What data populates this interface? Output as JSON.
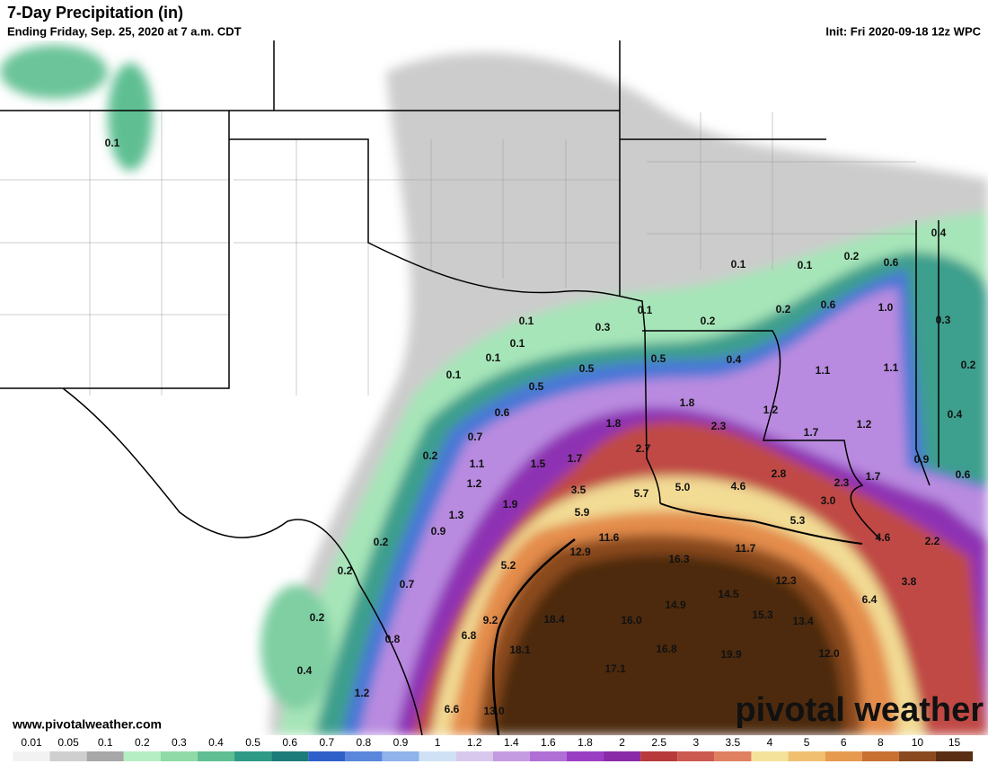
{
  "header": {
    "title": "7-Day Precipitation (in)",
    "subtitle": "Ending Friday, Sep. 25, 2020 at 7 a.m. CDT",
    "init": "Init: Fri 2020-09-18 12z WPC"
  },
  "map_labels": [
    "0.1",
    "0.1",
    "0.1",
    "0.2",
    "0.4",
    "0.6",
    "0.1",
    "0.1",
    "0.3",
    "0.2",
    "0.2",
    "0.6",
    "1.0",
    "0.3",
    "0.1",
    "0.1",
    "0.1",
    "0.5",
    "0.5",
    "0.4",
    "1.1",
    "1.1",
    "0.2",
    "0.5",
    "0.6",
    "1.8",
    "1.8",
    "2.3",
    "1.2",
    "1.7",
    "1.2",
    "0.4",
    "0.7",
    "2.7",
    "0.2",
    "1.1",
    "1.5",
    "1.7",
    "2.8",
    "1.7",
    "0.9",
    "0.6",
    "1.2",
    "3.5",
    "5.7",
    "5.0",
    "4.6",
    "2.3",
    "3.0",
    "1.9",
    "1.3",
    "5.9",
    "5.3",
    "0.9",
    "0.2",
    "11.6",
    "11.7",
    "4.6",
    "2.2",
    "12.9",
    "16.3",
    "0.2",
    "5.2",
    "12.3",
    "3.8",
    "0.7",
    "14.5",
    "6.4",
    "14.9",
    "15.3",
    "0.2",
    "9.2",
    "18.4",
    "16.0",
    "13.4",
    "0.8",
    "6.8",
    "18.1",
    "16.8",
    "19.9",
    "12.0",
    "0.4",
    "17.1",
    "1.2",
    "6.6",
    "13.0"
  ],
  "watermark": "pivotal weather",
  "url": "www.pivotalweather.com",
  "legend": {
    "labels": [
      "0.01",
      "0.05",
      "0.1",
      "0.2",
      "0.3",
      "0.4",
      "0.5",
      "0.6",
      "0.7",
      "0.8",
      "0.9",
      "1",
      "1.2",
      "1.4",
      "1.6",
      "1.8",
      "2",
      "2.5",
      "3",
      "3.5",
      "4",
      "5",
      "6",
      "8",
      "10",
      "15"
    ],
    "colors": [
      "#f2f2f2",
      "#cfcfcf",
      "#a7a7a7",
      "#b5eec3",
      "#8fdaa7",
      "#5fbf93",
      "#2f9a85",
      "#1c7c7a",
      "#2f5fc8",
      "#5a86dc",
      "#8fb3ea",
      "#cfe2f5",
      "#d8c8ee",
      "#c49be0",
      "#b06fd5",
      "#9a3fc4",
      "#8a2aa8",
      "#b83a3a",
      "#cc5a50",
      "#df8060",
      "#f4e29a",
      "#f0c070",
      "#e69a50",
      "#c87030",
      "#8a4a1e",
      "#5a2e12"
    ]
  }
}
